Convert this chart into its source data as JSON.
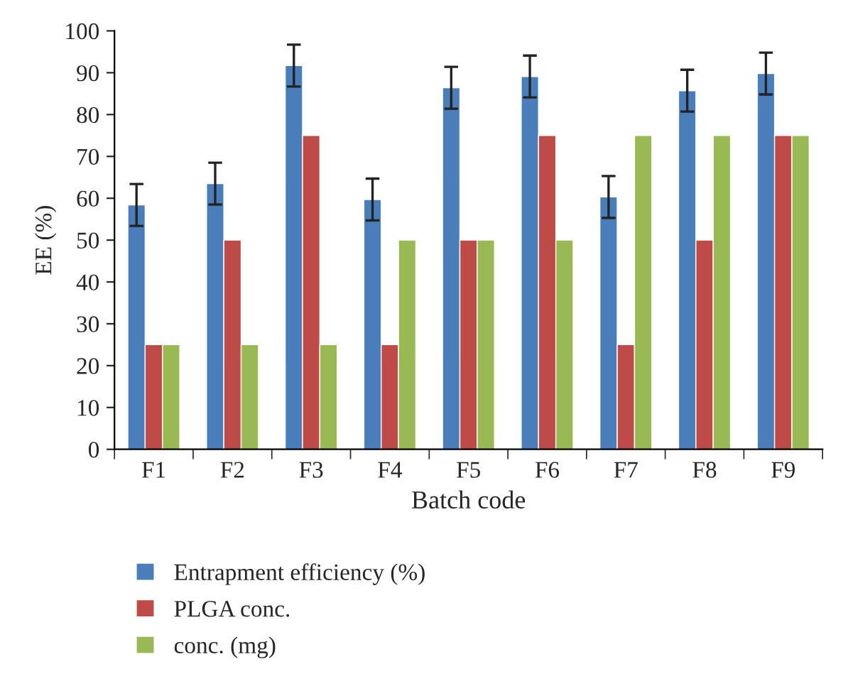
{
  "chart_data": {
    "type": "bar",
    "xlabel": "Batch code",
    "ylabel": "EE (%)",
    "categories": [
      "F1",
      "F2",
      "F3",
      "F4",
      "F5",
      "F6",
      "F7",
      "F8",
      "F9"
    ],
    "series": [
      {
        "name": "Entrapment efficiency (%)",
        "color": "#4a7ebb",
        "values": [
          58.4,
          63.5,
          91.7,
          59.7,
          86.4,
          89.1,
          60.3,
          85.7,
          89.8
        ],
        "errors": [
          5,
          5,
          5,
          5,
          5,
          5,
          5,
          5,
          5
        ]
      },
      {
        "name": "PLGA conc.",
        "color": "#be4b48",
        "values": [
          25,
          50,
          75,
          25,
          50,
          75,
          25,
          50,
          75
        ]
      },
      {
        "name": "conc. (mg)",
        "color": "#98b954",
        "values": [
          25,
          25,
          25,
          50,
          50,
          50,
          75,
          75,
          75
        ]
      }
    ],
    "ylim": [
      0,
      100
    ],
    "yticks": [
      0,
      10,
      20,
      30,
      40,
      50,
      60,
      70,
      80,
      90,
      100
    ],
    "grid": false,
    "legend": "bottom"
  }
}
